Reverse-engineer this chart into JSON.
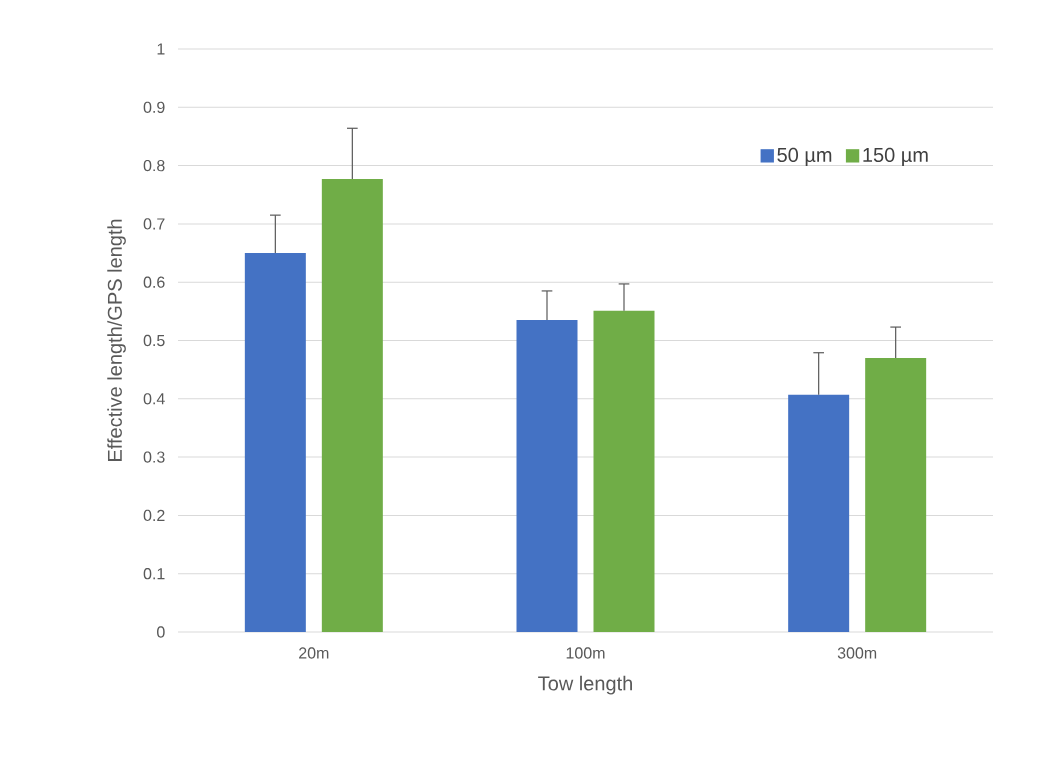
{
  "chart_data": {
    "type": "bar",
    "xlabel": "Tow length",
    "ylabel": "Effective length/GPS length",
    "categories": [
      "20m",
      "100m",
      "300m"
    ],
    "series": [
      {
        "name": "50 µm",
        "color": "#4472c4",
        "values": [
          0.65,
          0.535,
          0.407
        ],
        "errors": [
          [
            0.65,
            0.715
          ],
          [
            0.535,
            0.585
          ],
          [
            0.407,
            0.479
          ]
        ]
      },
      {
        "name": "150 µm",
        "color": "#70ad47",
        "values": [
          0.777,
          0.551,
          0.47
        ],
        "errors": [
          [
            0.777,
            0.864
          ],
          [
            0.551,
            0.597
          ],
          [
            0.47,
            0.523
          ]
        ]
      }
    ],
    "ylim": [
      0,
      1
    ],
    "yticks": [
      0,
      0.1,
      0.2,
      0.3,
      0.4,
      0.5,
      0.6,
      0.7,
      0.8,
      0.9,
      1
    ],
    "grid": "y",
    "legend": "top right"
  }
}
